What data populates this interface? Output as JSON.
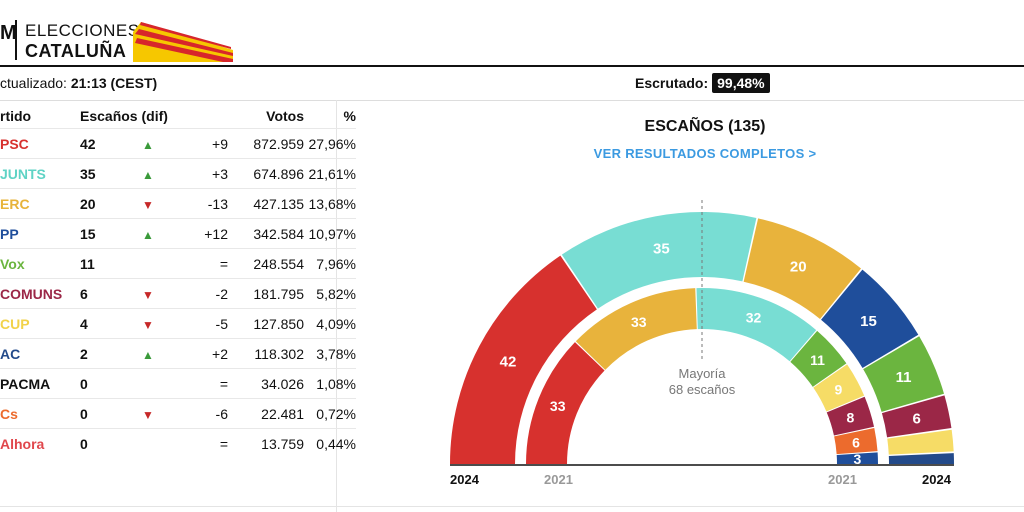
{
  "header": {
    "logo_letter": "M",
    "title_line1": "ELECCIONES",
    "title_line2": "CATALUÑA",
    "flag_colors": [
      "#f6c700",
      "#d7262b"
    ]
  },
  "status": {
    "updated_label": "ctualizado:",
    "updated_time": "21:13 (CEST)",
    "escrutado_label": "Escrutado:",
    "escrutado_value": "99,48%"
  },
  "table": {
    "headers": {
      "party": "rtido",
      "seats": "Escaños (dif)",
      "votes": "Votos",
      "pct": "%"
    },
    "rows": [
      {
        "party": "PSC",
        "color": "#d7312e",
        "seats": "42",
        "trend": "up",
        "dif": "+9",
        "votes": "872.959",
        "pct": "27,96%"
      },
      {
        "party": "JUNTS",
        "color": "#5fd3c5",
        "seats": "35",
        "trend": "up",
        "dif": "+3",
        "votes": "674.896",
        "pct": "21,61%"
      },
      {
        "party": "ERC",
        "color": "#e7b33a",
        "seats": "20",
        "trend": "down",
        "dif": "-13",
        "votes": "427.135",
        "pct": "13,68%"
      },
      {
        "party": "PP",
        "color": "#1f4e9b",
        "seats": "15",
        "trend": "up",
        "dif": "+12",
        "votes": "342.584",
        "pct": "10,97%"
      },
      {
        "party": "Vox",
        "color": "#6bb53f",
        "seats": "11",
        "trend": "",
        "dif": "=",
        "votes": "248.554",
        "pct": "7,96%"
      },
      {
        "party": "COMUNS",
        "color": "#9b2747",
        "seats": "6",
        "trend": "down",
        "dif": "-2",
        "votes": "181.795",
        "pct": "5,82%"
      },
      {
        "party": "CUP",
        "color": "#f2d24a",
        "seats": "4",
        "trend": "down",
        "dif": "-5",
        "votes": "127.850",
        "pct": "4,09%"
      },
      {
        "party": "AC",
        "color": "#234a8a",
        "seats": "2",
        "trend": "up",
        "dif": "+2",
        "votes": "118.302",
        "pct": "3,78%"
      },
      {
        "party": "PACMA",
        "color": "#111111",
        "seats": "0",
        "trend": "",
        "dif": "=",
        "votes": "34.026",
        "pct": "1,08%"
      },
      {
        "party": "Cs",
        "color": "#ec6b2d",
        "seats": "0",
        "trend": "down",
        "dif": "-6",
        "votes": "22.481",
        "pct": "0,72%"
      },
      {
        "party": "Alhora",
        "color": "#e0474c",
        "seats": "0",
        "trend": "",
        "dif": "=",
        "votes": "13.759",
        "pct": "0,44%"
      }
    ]
  },
  "chart_title": "ESCAÑOS (135)",
  "chart_link": "VER RESULTADOS COMPLETOS >",
  "majority": {
    "line1": "Mayoría",
    "line2": "68 escaños",
    "seats": 68
  },
  "chart_data": [
    {
      "type": "parliament",
      "label": "2024",
      "total": 135,
      "series": [
        {
          "party": "PSC",
          "seats": 42,
          "color": "#d7312e",
          "shown_label": "42"
        },
        {
          "party": "JUNTS",
          "seats": 35,
          "color": "#78ddd3",
          "shown_label": "35"
        },
        {
          "party": "ERC",
          "seats": 20,
          "color": "#e8b33c",
          "shown_label": "20"
        },
        {
          "party": "PP",
          "seats": 15,
          "color": "#1f4e9b",
          "shown_label": "15"
        },
        {
          "party": "Vox",
          "seats": 11,
          "color": "#6bb53f",
          "shown_label": "11"
        },
        {
          "party": "COMUNS",
          "seats": 6,
          "color": "#9b2747",
          "shown_label": "6"
        },
        {
          "party": "CUP",
          "seats": 4,
          "color": "#f6dc66",
          "shown_label": ""
        },
        {
          "party": "AC",
          "seats": 2,
          "color": "#234a8a",
          "shown_label": ""
        }
      ]
    },
    {
      "type": "parliament",
      "label": "2021",
      "total": 135,
      "series": [
        {
          "party": "PSC",
          "seats": 33,
          "color": "#d7312e",
          "shown_label": "33"
        },
        {
          "party": "ERC",
          "seats": 33,
          "color": "#e8b33c",
          "shown_label": "33"
        },
        {
          "party": "JUNTS",
          "seats": 32,
          "color": "#78ddd3",
          "shown_label": "32"
        },
        {
          "party": "Vox",
          "seats": 11,
          "color": "#6bb53f",
          "shown_label": "11"
        },
        {
          "party": "CUP",
          "seats": 9,
          "color": "#f6dc66",
          "shown_label": "9"
        },
        {
          "party": "COMUNS",
          "seats": 8,
          "color": "#9b2747",
          "shown_label": "8"
        },
        {
          "party": "Cs",
          "seats": 6,
          "color": "#ec6b2d",
          "shown_label": "6"
        },
        {
          "party": "PP",
          "seats": 3,
          "color": "#1f4e9b",
          "shown_label": "3"
        }
      ]
    }
  ]
}
